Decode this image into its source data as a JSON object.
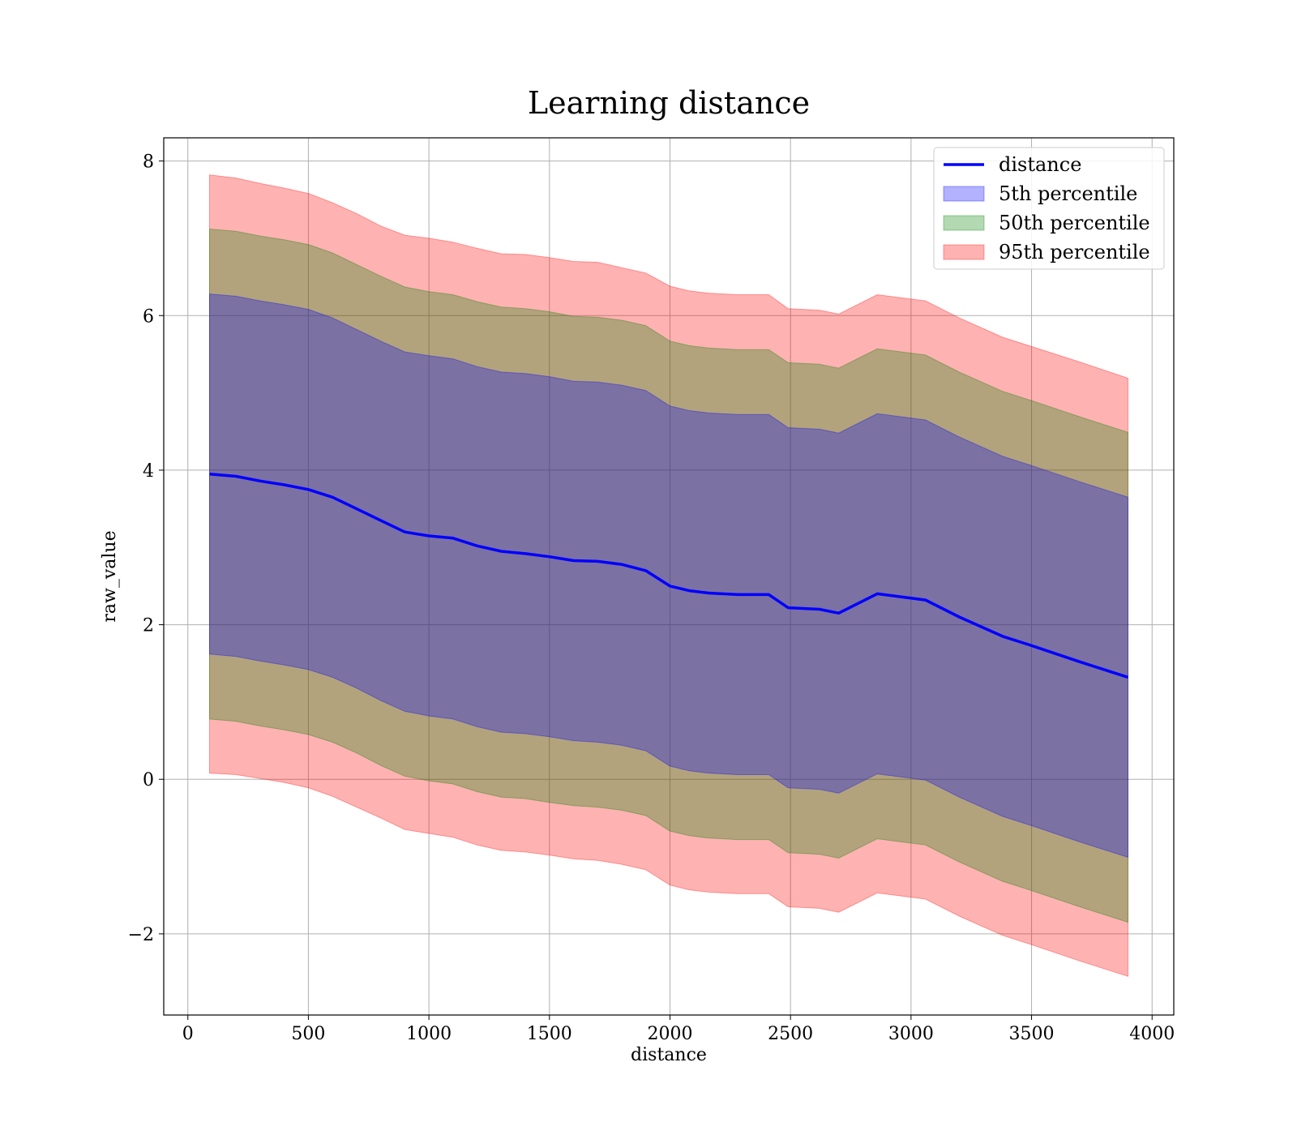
{
  "chart_data": {
    "type": "area",
    "title": "Learning distance",
    "xlabel": "distance",
    "ylabel": "raw_value",
    "xlim": [
      -100,
      4090
    ],
    "ylim": [
      -3.05,
      8.3
    ],
    "xticks": [
      0,
      500,
      1000,
      1500,
      2000,
      2500,
      3000,
      3500,
      4000
    ],
    "xtick_labels": [
      "0",
      "500",
      "1000",
      "1500",
      "2000",
      "2500",
      "3000",
      "3500",
      "4000"
    ],
    "yticks": [
      -2,
      0,
      2,
      4,
      6,
      8
    ],
    "ytick_labels": [
      "−2",
      "0",
      "2",
      "4",
      "6",
      "8"
    ],
    "grid": true,
    "legend_position": "top-right",
    "legend": [
      {
        "label": "distance",
        "kind": "line",
        "color": "#0000ff"
      },
      {
        "label": "5th percentile",
        "kind": "patch",
        "color": "#0000ff"
      },
      {
        "label": "50th percentile",
        "kind": "patch",
        "color": "#008000"
      },
      {
        "label": "95th percentile",
        "kind": "patch",
        "color": "#ff0000"
      }
    ],
    "x": [
      90,
      200,
      300,
      400,
      500,
      600,
      700,
      800,
      900,
      1000,
      1100,
      1200,
      1300,
      1400,
      1500,
      1600,
      1700,
      1800,
      1900,
      2000,
      2080,
      2160,
      2280,
      2410,
      2490,
      2620,
      2700,
      2860,
      3060,
      3200,
      3380,
      3500,
      3700,
      3900
    ],
    "line": {
      "name": "distance",
      "color": "#0000ff",
      "values": [
        3.95,
        3.92,
        3.86,
        3.81,
        3.75,
        3.65,
        3.5,
        3.35,
        3.2,
        3.15,
        3.12,
        3.02,
        2.95,
        2.92,
        2.88,
        2.83,
        2.82,
        2.78,
        2.7,
        2.5,
        2.44,
        2.41,
        2.39,
        2.39,
        2.22,
        2.2,
        2.15,
        2.4,
        2.32,
        2.1,
        1.85,
        1.73,
        1.52,
        1.32
      ]
    },
    "bands": [
      {
        "name": "95th percentile",
        "color": "#ff0000",
        "opacity": 0.3,
        "upper": [
          7.82,
          7.78,
          7.71,
          7.65,
          7.58,
          7.46,
          7.32,
          7.16,
          7.04,
          7.0,
          6.95,
          6.87,
          6.8,
          6.79,
          6.75,
          6.7,
          6.69,
          6.62,
          6.55,
          6.38,
          6.32,
          6.29,
          6.27,
          6.27,
          6.09,
          6.07,
          6.02,
          6.27,
          6.19,
          5.97,
          5.72,
          5.6,
          5.4,
          5.19
        ],
        "lower": [
          0.08,
          0.06,
          0.01,
          -0.04,
          -0.11,
          -0.22,
          -0.36,
          -0.5,
          -0.65,
          -0.7,
          -0.75,
          -0.85,
          -0.92,
          -0.94,
          -0.98,
          -1.03,
          -1.05,
          -1.1,
          -1.17,
          -1.37,
          -1.43,
          -1.46,
          -1.48,
          -1.48,
          -1.65,
          -1.67,
          -1.72,
          -1.47,
          -1.55,
          -1.77,
          -2.02,
          -2.14,
          -2.35,
          -2.55
        ]
      },
      {
        "name": "50th percentile",
        "color": "#008000",
        "opacity": 0.3,
        "upper": [
          7.12,
          7.09,
          7.03,
          6.98,
          6.92,
          6.81,
          6.66,
          6.51,
          6.37,
          6.31,
          6.27,
          6.18,
          6.11,
          6.09,
          6.05,
          5.99,
          5.98,
          5.94,
          5.87,
          5.67,
          5.61,
          5.58,
          5.56,
          5.56,
          5.39,
          5.37,
          5.32,
          5.57,
          5.49,
          5.27,
          5.02,
          4.9,
          4.69,
          4.49
        ],
        "lower": [
          0.78,
          0.75,
          0.69,
          0.64,
          0.58,
          0.48,
          0.34,
          0.18,
          0.04,
          -0.02,
          -0.06,
          -0.16,
          -0.23,
          -0.25,
          -0.3,
          -0.34,
          -0.36,
          -0.4,
          -0.47,
          -0.67,
          -0.73,
          -0.76,
          -0.78,
          -0.78,
          -0.95,
          -0.97,
          -1.02,
          -0.77,
          -0.85,
          -1.07,
          -1.32,
          -1.44,
          -1.65,
          -1.85
        ]
      },
      {
        "name": "5th percentile",
        "color": "#0000ff",
        "opacity": 0.3,
        "upper": [
          6.28,
          6.25,
          6.19,
          6.14,
          6.08,
          5.97,
          5.82,
          5.67,
          5.53,
          5.48,
          5.44,
          5.34,
          5.27,
          5.25,
          5.21,
          5.15,
          5.14,
          5.1,
          5.03,
          4.83,
          4.77,
          4.74,
          4.72,
          4.72,
          4.55,
          4.53,
          4.48,
          4.73,
          4.65,
          4.43,
          4.18,
          4.06,
          3.85,
          3.65
        ],
        "lower": [
          1.62,
          1.59,
          1.53,
          1.48,
          1.42,
          1.32,
          1.18,
          1.02,
          0.88,
          0.82,
          0.78,
          0.68,
          0.61,
          0.59,
          0.55,
          0.5,
          0.48,
          0.44,
          0.37,
          0.17,
          0.11,
          0.08,
          0.06,
          0.06,
          -0.11,
          -0.13,
          -0.18,
          0.07,
          -0.01,
          -0.23,
          -0.48,
          -0.6,
          -0.81,
          -1.01
        ]
      }
    ]
  }
}
